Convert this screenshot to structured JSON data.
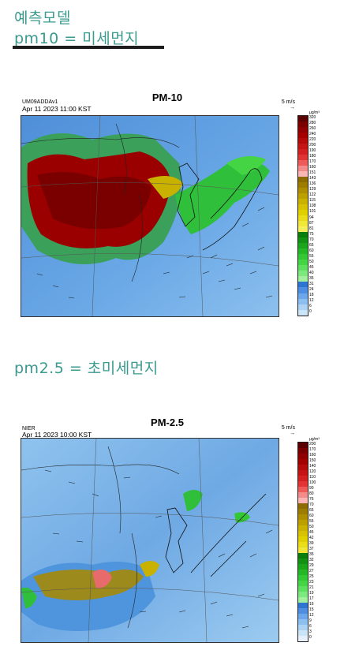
{
  "headings": {
    "title": "예측모델",
    "pm10_label": "pm10 = 미세먼지",
    "pm25_label": "pm2.5 = 초미세먼지"
  },
  "panel_pm10": {
    "title": "PM-10",
    "model": "UM09ADDAv1",
    "datetime": "Apr 11 2023 11:00 KST",
    "wind_scale": "5 m/s",
    "unit": "μg/m³",
    "ticks": [
      "320",
      "280",
      "260",
      "240",
      "220",
      "200",
      "190",
      "180",
      "170",
      "160",
      "151",
      "143",
      "136",
      "129",
      "122",
      "115",
      "108",
      "101",
      "94",
      "87",
      "81",
      "75",
      "70",
      "65",
      "60",
      "55",
      "50",
      "45",
      "40",
      "35",
      "31",
      "24",
      "18",
      "12",
      "6",
      "0"
    ],
    "colors": [
      "#5a0000",
      "#7a0000",
      "#8f0000",
      "#a30000",
      "#b40a0a",
      "#c41414",
      "#d42020",
      "#e23434",
      "#ee5a5a",
      "#f58a8a",
      "#fbb7b7",
      "#8c6b00",
      "#9c7d00",
      "#ad8e00",
      "#bca000",
      "#c9b100",
      "#d6c200",
      "#e1d000",
      "#eadc18",
      "#f1e63a",
      "#f6ee5c",
      "#0b7d0b",
      "#139113",
      "#1ca51c",
      "#26b726",
      "#33c733",
      "#44d444",
      "#5fdf5f",
      "#7de87d",
      "#a0f0a0",
      "#2f74d0",
      "#4d8ee0",
      "#6ba7ea",
      "#8cbff0",
      "#acd3f4",
      "#cce4f8"
    ]
  },
  "panel_pm25": {
    "title": "PM-2.5",
    "model": "NIER",
    "datetime": "Apr 11 2023 10:00 KST",
    "wind_scale": "5 m/s",
    "unit": "μg/m³",
    "ticks": [
      "200",
      "170",
      "160",
      "150",
      "140",
      "120",
      "110",
      "100",
      "90",
      "80",
      "76",
      "70",
      "65",
      "60",
      "55",
      "50",
      "45",
      "42",
      "39",
      "37",
      "35",
      "32",
      "29",
      "27",
      "25",
      "23",
      "21",
      "19",
      "17",
      "16",
      "15",
      "12",
      "9",
      "6",
      "3",
      "0"
    ],
    "colors": [
      "#5a0000",
      "#7a0000",
      "#8f0000",
      "#a30000",
      "#b40a0a",
      "#c41414",
      "#d42020",
      "#e23434",
      "#ee5a5a",
      "#f58a8a",
      "#fbb7b7",
      "#8c6b00",
      "#9c7d00",
      "#ad8e00",
      "#bca000",
      "#c9b100",
      "#d6c200",
      "#e1d000",
      "#eadc18",
      "#f1e63a",
      "#0b7d0b",
      "#139113",
      "#1ca51c",
      "#26b726",
      "#33c733",
      "#44d444",
      "#5fdf5f",
      "#7de87d",
      "#a0f0a0",
      "#2f74d0",
      "#4d8ee0",
      "#6ba7ea",
      "#8cbff0",
      "#acd3f4",
      "#cce4f8",
      "#e4f0fb"
    ]
  }
}
